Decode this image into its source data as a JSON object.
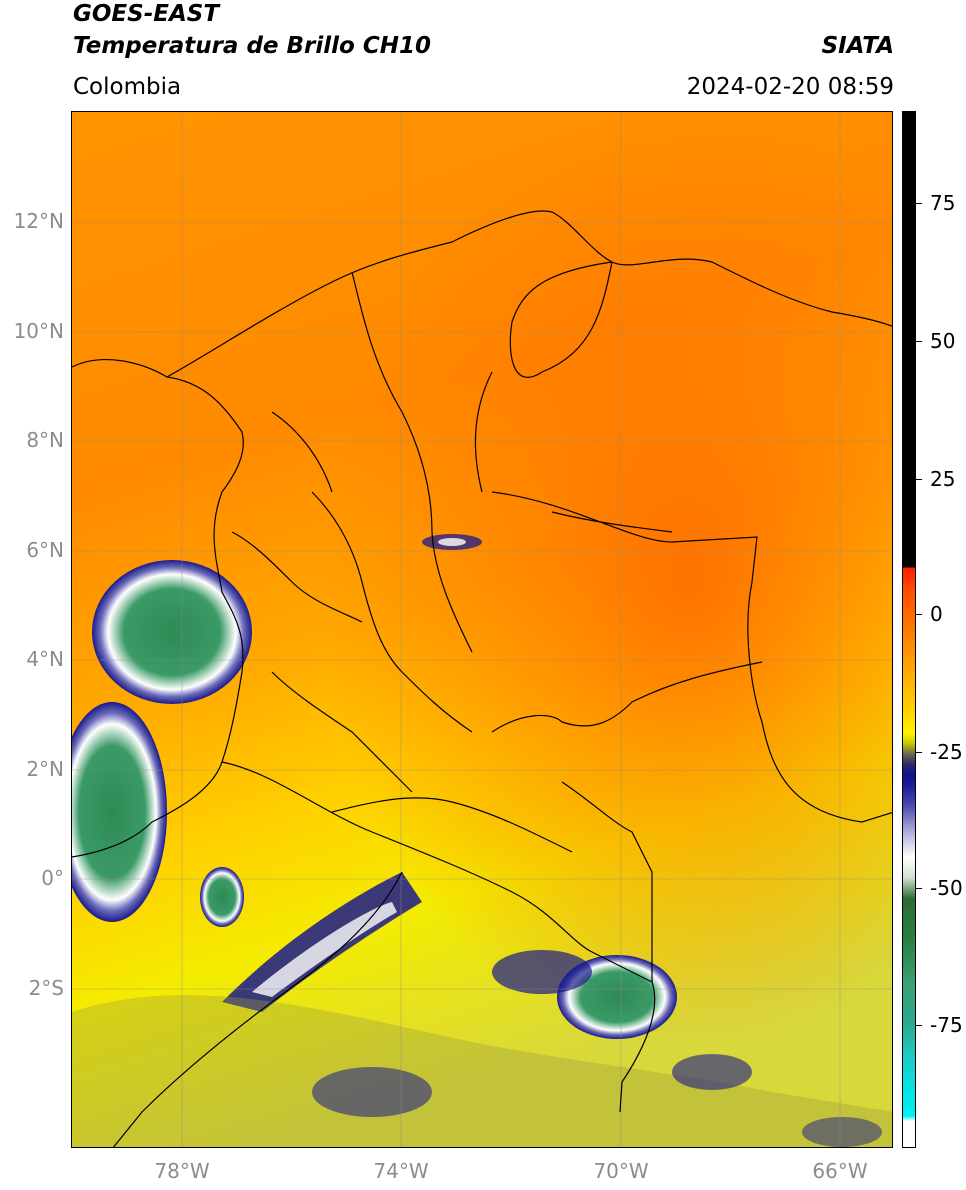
{
  "header": {
    "satellite": "GOES-EAST",
    "product": "Temperatura de Brillo CH10",
    "region": "Colombia",
    "institution": "SIATA",
    "datetime": "2024-02-20 08:59"
  },
  "map": {
    "lat_labels": [
      "12°N",
      "10°N",
      "8°N",
      "6°N",
      "4°N",
      "2°N",
      "0°",
      "2°S"
    ],
    "lon_labels": [
      "78°W",
      "74°W",
      "70°W",
      "66°W"
    ],
    "extent": {
      "lon_min": -80,
      "lon_max": -65,
      "lat_min": -5,
      "lat_max": 14
    },
    "grid": true
  },
  "colorbar": {
    "tick_labels": [
      "75",
      "50",
      "25",
      "0",
      "-25",
      "-50",
      "-75"
    ],
    "colors": {
      "warm": "#ff7a00",
      "mid": "#ffd000",
      "cold_yellow": "#f0ee00",
      "blue": "#1a1a8c",
      "white": "#ffffff",
      "green": "#2f8a55",
      "cyan": "#20e0e0",
      "black": "#000000",
      "red": "#ff2000"
    }
  }
}
